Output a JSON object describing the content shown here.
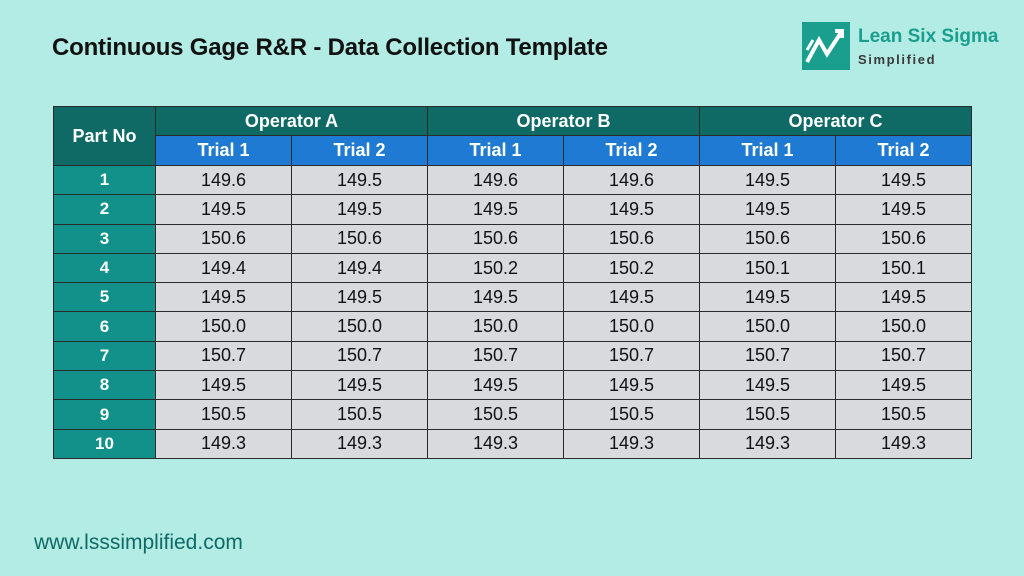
{
  "title": "Continuous Gage R&R - Data Collection Template",
  "logo": {
    "line1": "Lean Six Sigma",
    "line2": "Simplified",
    "icon": "zigzag-arrow-logo-icon",
    "colors": {
      "mark": "#1a9e8d",
      "line1": "#1a9e8d",
      "line2": "#3a3a3a"
    }
  },
  "table": {
    "part_header": "Part No",
    "operators": [
      "Operator A",
      "Operator B",
      "Operator C"
    ],
    "trials": [
      "Trial 1",
      "Trial 2",
      "Trial 1",
      "Trial 2",
      "Trial 1",
      "Trial 2"
    ],
    "rows": [
      {
        "part": "1",
        "values": [
          "149.6",
          "149.5",
          "149.6",
          "149.6",
          "149.5",
          "149.5"
        ]
      },
      {
        "part": "2",
        "values": [
          "149.5",
          "149.5",
          "149.5",
          "149.5",
          "149.5",
          "149.5"
        ]
      },
      {
        "part": "3",
        "values": [
          "150.6",
          "150.6",
          "150.6",
          "150.6",
          "150.6",
          "150.6"
        ]
      },
      {
        "part": "4",
        "values": [
          "149.4",
          "149.4",
          "150.2",
          "150.2",
          "150.1",
          "150.1"
        ]
      },
      {
        "part": "5",
        "values": [
          "149.5",
          "149.5",
          "149.5",
          "149.5",
          "149.5",
          "149.5"
        ]
      },
      {
        "part": "6",
        "values": [
          "150.0",
          "150.0",
          "150.0",
          "150.0",
          "150.0",
          "150.0"
        ]
      },
      {
        "part": "7",
        "values": [
          "150.7",
          "150.7",
          "150.7",
          "150.7",
          "150.7",
          "150.7"
        ]
      },
      {
        "part": "8",
        "values": [
          "149.5",
          "149.5",
          "149.5",
          "149.5",
          "149.5",
          "149.5"
        ]
      },
      {
        "part": "9",
        "values": [
          "150.5",
          "150.5",
          "150.5",
          "150.5",
          "150.5",
          "150.5"
        ]
      },
      {
        "part": "10",
        "values": [
          "149.3",
          "149.3",
          "149.3",
          "149.3",
          "149.3",
          "149.3"
        ]
      }
    ],
    "colors": {
      "operator_header": "#0f6a66",
      "trial_header": "#1e7ad2",
      "part_cell": "#12908a",
      "value_cell": "#d8dade"
    }
  },
  "footer": {
    "url": "www.lsssimplified.com"
  },
  "background_color": "#b2ece4"
}
